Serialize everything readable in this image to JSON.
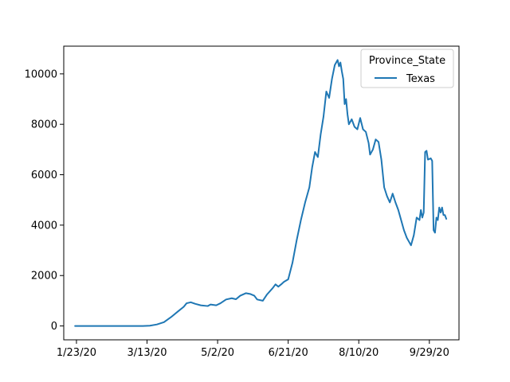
{
  "chart_data": {
    "type": "line",
    "title": "",
    "xlabel": "",
    "ylabel": "",
    "x_ticks": [
      "1/23/20",
      "3/13/20",
      "5/2/20",
      "6/21/20",
      "8/10/20",
      "9/29/20"
    ],
    "y_ticks": [
      0,
      2000,
      4000,
      6000,
      8000,
      10000
    ],
    "xlim": [
      "2020-01-14",
      "2020-10-20"
    ],
    "ylim": [
      -550,
      11100
    ],
    "grid": false,
    "legend": {
      "title": "Province_State",
      "placement": "top-right"
    },
    "line_color": "#1f77b4",
    "series": [
      {
        "name": "Texas",
        "points": [
          [
            "2020-01-22",
            0
          ],
          [
            "2020-03-10",
            0
          ],
          [
            "2020-03-15",
            10
          ],
          [
            "2020-03-20",
            60
          ],
          [
            "2020-03-25",
            150
          ],
          [
            "2020-03-30",
            350
          ],
          [
            "2020-04-04",
            580
          ],
          [
            "2020-04-08",
            760
          ],
          [
            "2020-04-10",
            900
          ],
          [
            "2020-04-13",
            940
          ],
          [
            "2020-04-16",
            880
          ],
          [
            "2020-04-20",
            820
          ],
          [
            "2020-04-25",
            790
          ],
          [
            "2020-04-27",
            850
          ],
          [
            "2020-05-01",
            820
          ],
          [
            "2020-05-04",
            900
          ],
          [
            "2020-05-08",
            1050
          ],
          [
            "2020-05-12",
            1100
          ],
          [
            "2020-05-15",
            1060
          ],
          [
            "2020-05-18",
            1200
          ],
          [
            "2020-05-22",
            1300
          ],
          [
            "2020-05-25",
            1270
          ],
          [
            "2020-05-28",
            1200
          ],
          [
            "2020-05-30",
            1050
          ],
          [
            "2020-06-03",
            1000
          ],
          [
            "2020-06-06",
            1250
          ],
          [
            "2020-06-10",
            1500
          ],
          [
            "2020-06-12",
            1650
          ],
          [
            "2020-06-14",
            1560
          ],
          [
            "2020-06-16",
            1650
          ],
          [
            "2020-06-18",
            1750
          ],
          [
            "2020-06-21",
            1850
          ],
          [
            "2020-06-24",
            2500
          ],
          [
            "2020-06-27",
            3400
          ],
          [
            "2020-06-30",
            4200
          ],
          [
            "2020-07-03",
            4900
          ],
          [
            "2020-07-06",
            5500
          ],
          [
            "2020-07-08",
            6300
          ],
          [
            "2020-07-10",
            6900
          ],
          [
            "2020-07-12",
            6700
          ],
          [
            "2020-07-14",
            7600
          ],
          [
            "2020-07-16",
            8300
          ],
          [
            "2020-07-18",
            9300
          ],
          [
            "2020-07-20",
            9050
          ],
          [
            "2020-07-22",
            9800
          ],
          [
            "2020-07-24",
            10350
          ],
          [
            "2020-07-26",
            10550
          ],
          [
            "2020-07-27",
            10300
          ],
          [
            "2020-07-28",
            10450
          ],
          [
            "2020-07-29",
            10100
          ],
          [
            "2020-07-30",
            9800
          ],
          [
            "2020-07-31",
            8800
          ],
          [
            "2020-08-01",
            9000
          ],
          [
            "2020-08-02",
            8400
          ],
          [
            "2020-08-03",
            8000
          ],
          [
            "2020-08-05",
            8200
          ],
          [
            "2020-08-07",
            7900
          ],
          [
            "2020-08-09",
            7800
          ],
          [
            "2020-08-11",
            8250
          ],
          [
            "2020-08-13",
            7800
          ],
          [
            "2020-08-15",
            7700
          ],
          [
            "2020-08-17",
            7250
          ],
          [
            "2020-08-18",
            6800
          ],
          [
            "2020-08-20",
            7000
          ],
          [
            "2020-08-22",
            7400
          ],
          [
            "2020-08-24",
            7300
          ],
          [
            "2020-08-26",
            6600
          ],
          [
            "2020-08-28",
            5500
          ],
          [
            "2020-08-30",
            5150
          ],
          [
            "2020-09-01",
            4900
          ],
          [
            "2020-09-03",
            5250
          ],
          [
            "2020-09-05",
            4900
          ],
          [
            "2020-09-07",
            4600
          ],
          [
            "2020-09-09",
            4200
          ],
          [
            "2020-09-11",
            3800
          ],
          [
            "2020-09-13",
            3500
          ],
          [
            "2020-09-15",
            3300
          ],
          [
            "2020-09-16",
            3200
          ],
          [
            "2020-09-18",
            3600
          ],
          [
            "2020-09-20",
            4300
          ],
          [
            "2020-09-22",
            4200
          ],
          [
            "2020-09-23",
            4600
          ],
          [
            "2020-09-24",
            4300
          ],
          [
            "2020-09-25",
            4500
          ],
          [
            "2020-09-26",
            6900
          ],
          [
            "2020-09-27",
            6950
          ],
          [
            "2020-09-28",
            6600
          ],
          [
            "2020-09-30",
            6650
          ],
          [
            "2020-10-01",
            6550
          ],
          [
            "2020-10-02",
            3800
          ],
          [
            "2020-10-03",
            3700
          ],
          [
            "2020-10-04",
            4300
          ],
          [
            "2020-10-05",
            4200
          ],
          [
            "2020-10-06",
            4700
          ],
          [
            "2020-10-07",
            4500
          ],
          [
            "2020-10-08",
            4700
          ],
          [
            "2020-10-09",
            4400
          ],
          [
            "2020-10-10",
            4400
          ],
          [
            "2020-10-11",
            4250
          ]
        ]
      }
    ]
  }
}
